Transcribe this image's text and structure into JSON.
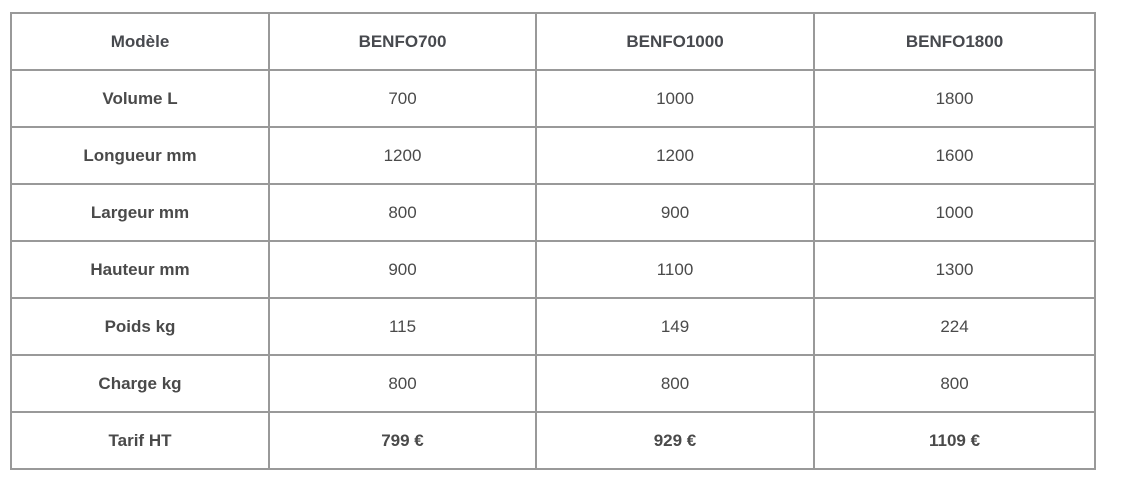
{
  "table": {
    "corner_label": "Modèle",
    "column_headers": [
      "BENFO700",
      "BENFO1000",
      "BENFO1800"
    ],
    "rows": [
      {
        "label": "Volume L",
        "values": [
          "700",
          "1000",
          "1800"
        ]
      },
      {
        "label": "Longueur mm",
        "values": [
          "1200",
          "1200",
          "1600"
        ]
      },
      {
        "label": "Largeur mm",
        "values": [
          "800",
          "900",
          "1000"
        ]
      },
      {
        "label": "Hauteur mm",
        "values": [
          "900",
          "1100",
          "1300"
        ]
      },
      {
        "label": "Poids kg",
        "values": [
          "115",
          "149",
          "224"
        ]
      },
      {
        "label": "Charge kg",
        "values": [
          "800",
          "800",
          "800"
        ]
      }
    ],
    "price_row": {
      "label": "Tarif HT",
      "values": [
        "799 €",
        "929 €",
        "1109 €"
      ]
    },
    "colors": {
      "border": "#999999",
      "label_text": "#47494e",
      "value_text": "#54565b",
      "price_text": "#e60019",
      "background": "#ffffff"
    }
  }
}
